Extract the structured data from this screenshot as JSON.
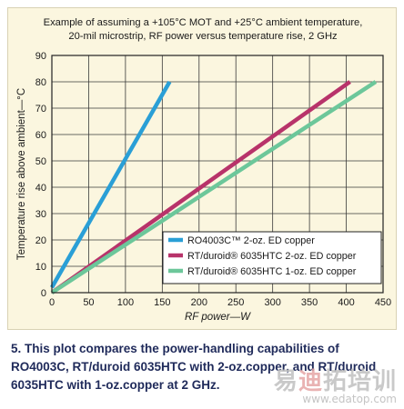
{
  "chart_data": {
    "type": "line",
    "title_lines": [
      "Example of assuming a +105°C MOT and +25°C ambient temperature,",
      "20-mil microstrip, RF power versus temperature rise, 2 GHz"
    ],
    "xlabel": "RF power—W",
    "ylabel": "Temperature rise above ambient—°C",
    "xlim": [
      0,
      450
    ],
    "ylim": [
      0,
      90
    ],
    "xticks": [
      0,
      50,
      100,
      150,
      200,
      250,
      300,
      350,
      400,
      450
    ],
    "yticks": [
      0,
      10,
      20,
      30,
      40,
      50,
      60,
      70,
      80,
      90
    ],
    "grid": true,
    "legend_position": "bottom-right",
    "series": [
      {
        "name": "RO4003C™ 2-oz. ED copper",
        "color": "#2a9fd6",
        "x": [
          0,
          160
        ],
        "y": [
          2,
          80
        ]
      },
      {
        "name": "RT/duroid® 6035HTC 2-oz. ED copper",
        "color": "#b8336a",
        "x": [
          0,
          405
        ],
        "y": [
          0,
          80
        ]
      },
      {
        "name": "RT/duroid® 6035HTC 1-oz. ED copper",
        "color": "#6cc79a",
        "x": [
          0,
          440
        ],
        "y": [
          0,
          80
        ]
      }
    ]
  },
  "caption": "5. This plot compares the power-handling capabilities of RO4003C, RT/duroid 6035HTC with 2-oz.copper, and RT/duroid 6035HTC with 1-oz.copper at 2 GHz.",
  "watermark": {
    "cn_chars": [
      "易",
      "迪",
      "拓",
      "培",
      "训"
    ],
    "url": "www.edatop.com"
  }
}
